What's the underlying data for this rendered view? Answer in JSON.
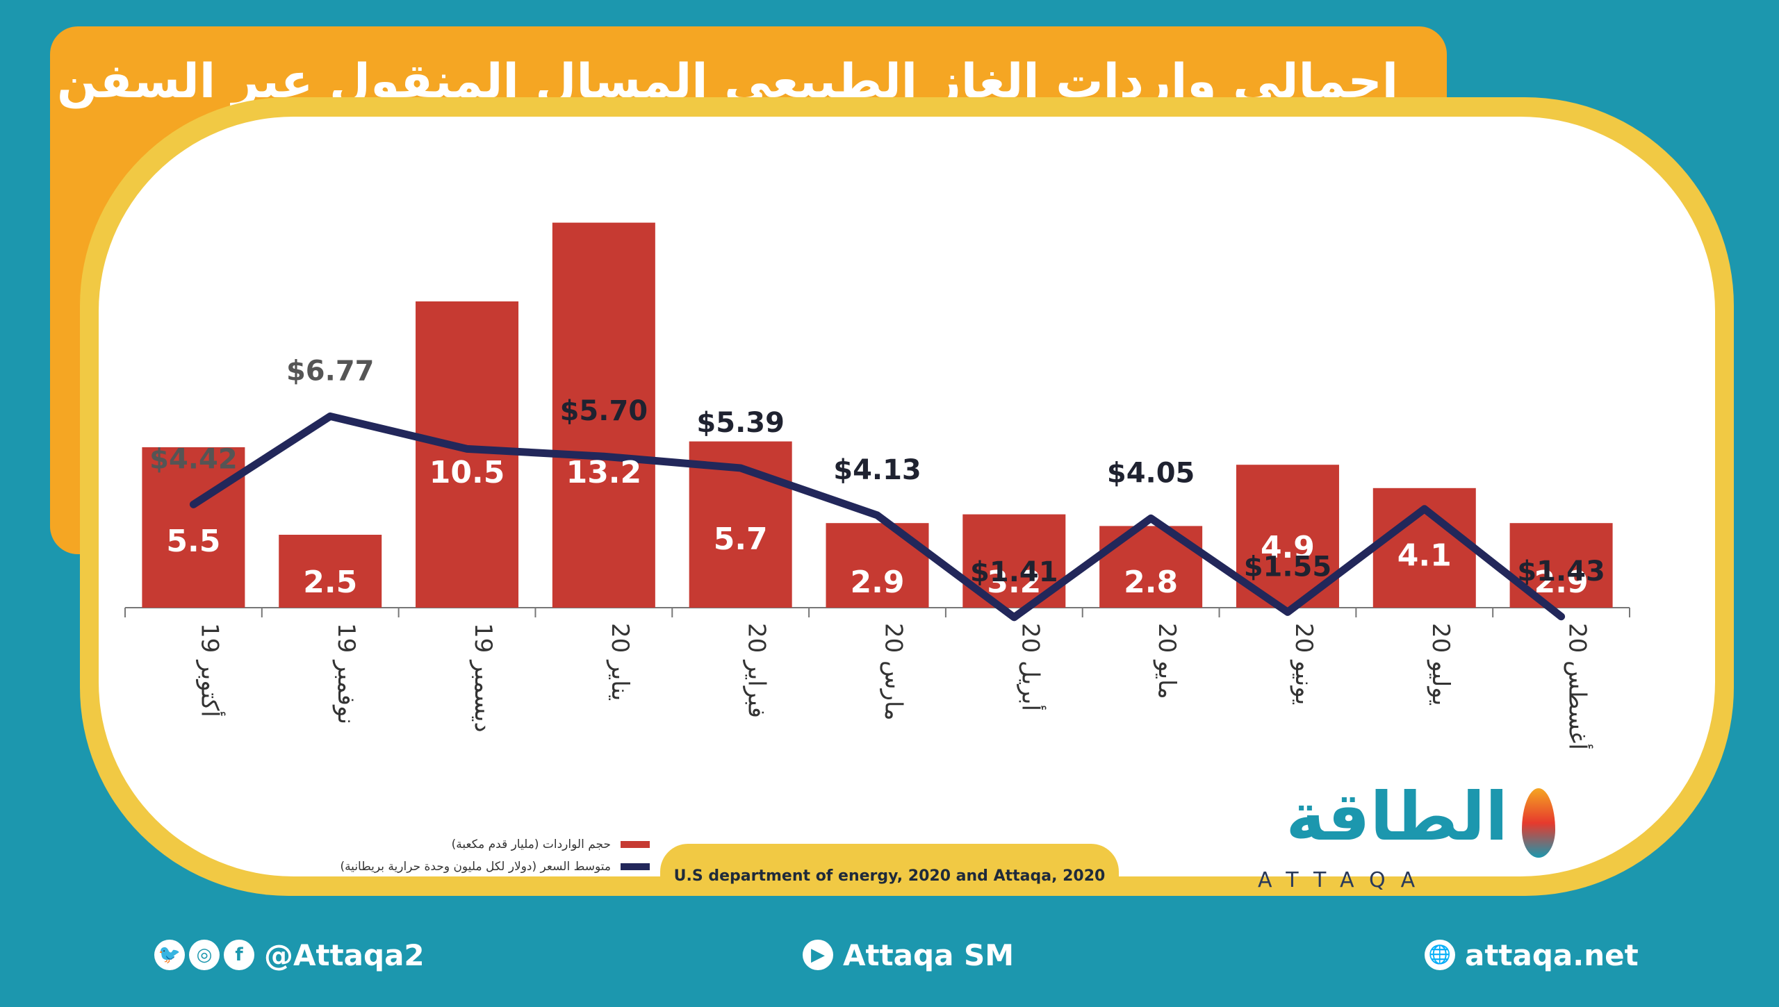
{
  "title": "إجمالي واردات الغاز الطبيعي المسال المنقول عبر السفن",
  "chart_data": {
    "type": "bar",
    "categories": [
      "19 أكتوبر",
      "19 نوفمبر",
      "19 ديسمبر",
      "20 يناير",
      "20 فبراير",
      "20 مارس",
      "20 أبريل",
      "20 مايو",
      "20 يونيو",
      "20 يوليو",
      "20 أغسطس"
    ],
    "series": [
      {
        "name": "حجم الواردات (مليار قدم مكعبة)",
        "type": "bar",
        "color": "#c63a32",
        "values": [
          5.5,
          2.5,
          10.5,
          13.2,
          5.7,
          2.9,
          3.2,
          2.8,
          4.9,
          4.1,
          2.9
        ],
        "labels": [
          "5.5",
          "2.5",
          "10.5",
          "13.2",
          "5.7",
          "2.9",
          "3.2",
          "2.8",
          "4.9",
          "4.1",
          "2.9"
        ]
      },
      {
        "name": "متوسط السعر (دولار لكل مليون وحدة حرارية بريطانية)",
        "type": "line",
        "color": "#22275a",
        "values": [
          4.42,
          6.77,
          5.9,
          5.7,
          5.39,
          4.13,
          1.41,
          4.05,
          1.55,
          4.3,
          1.43
        ],
        "labels": [
          "$4.42",
          "$6.77",
          "",
          "$5.70",
          "$5.39",
          "$4.13",
          "$1.41",
          "$4.05",
          "$1.55",
          "",
          "$1.43"
        ]
      }
    ],
    "legend": "bottom-left",
    "grid": false
  },
  "source": "U.S department of energy, 2020 and Attaqa, 2020",
  "logo": {
    "arabic": "الطاقة",
    "latin": "ATTAQA"
  },
  "footer": {
    "social_handle": "@Attaqa2",
    "youtube": "Attaqa SM",
    "website": "attaqa.net",
    "icons": [
      "twitter-icon",
      "instagram-icon",
      "facebook-icon",
      "youtube-icon",
      "globe-icon"
    ]
  },
  "colors": {
    "background": "#1c97ae",
    "tab": "#f5a623",
    "frame": "#f1c944",
    "bar": "#c63a32",
    "line": "#22275a"
  }
}
